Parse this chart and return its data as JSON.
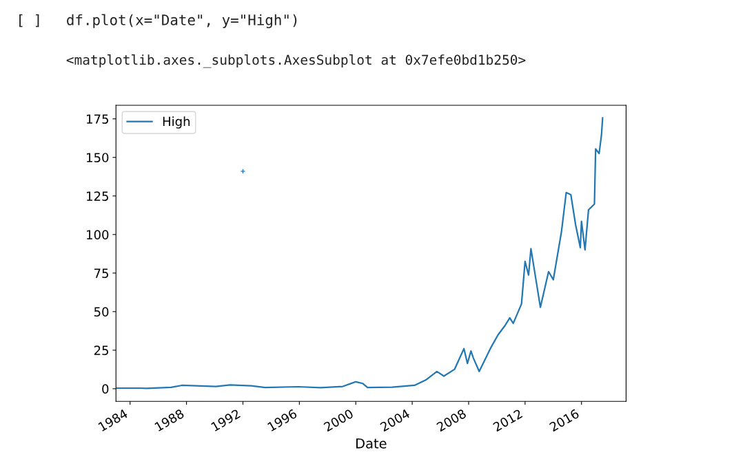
{
  "chart_data": {
    "type": "line",
    "annotations": [
      "[ ]",
      "df.plot(x=\"Date\", y=\"High\")",
      "<matplotlib.axes._subplots.AxesSubplot at 0x7efe0bd1b250>"
    ],
    "xlabel": "Date",
    "series": [
      {
        "name": "High",
        "color": "#1f77b4",
        "x": [
          "1983-02",
          "1984-10",
          "1985-03",
          "1986-12",
          "1987-09",
          "1990-02",
          "1991-02",
          "1992-08",
          "1993-08",
          "1995-12",
          "1997-07",
          "1999-02",
          "2000-01",
          "2000-07",
          "2000-11",
          "2002-08",
          "2004-03",
          "2005-01",
          "2005-10",
          "2006-04",
          "2007-01",
          "2007-09",
          "2007-12",
          "2008-03",
          "2008-05",
          "2008-10",
          "2009-08",
          "2010-02",
          "2010-08",
          "2010-12",
          "2011-03",
          "2011-10",
          "2012-01",
          "2012-04",
          "2012-06",
          "2013-02",
          "2013-09",
          "2014-01",
          "2014-08",
          "2014-12",
          "2015-04",
          "2015-08",
          "2015-12",
          "2016-01",
          "2016-04",
          "2016-07",
          "2016-12",
          "2017-01",
          "2017-04",
          "2017-06",
          "2017-07"
        ],
        "values": [
          0.4,
          0.4,
          0.2,
          0.9,
          2.2,
          1.5,
          2.5,
          1.9,
          0.8,
          1.3,
          0.7,
          1.5,
          4.5,
          3.4,
          0.8,
          1.0,
          2.2,
          5.9,
          11.2,
          8.2,
          12.6,
          26,
          16.4,
          24.5,
          20,
          11.2,
          26.8,
          35,
          41,
          46,
          42.4,
          55,
          82.6,
          73.7,
          90.8,
          52.8,
          75.9,
          70.7,
          101.9,
          127.2,
          125.8,
          106.4,
          91.5,
          108.6,
          90,
          116,
          119.8,
          155.5,
          152.5,
          164.4,
          175.6
        ]
      },
      {
        "type": "scatter",
        "marker": "cross",
        "color": "#1f77b4",
        "x": [
          "1992-01"
        ],
        "values": [
          141
        ]
      }
    ],
    "xlim": [
      "1983-01",
      "2019-03"
    ],
    "xticks": [
      {
        "value": "1984",
        "label": "1984"
      },
      {
        "value": "1988",
        "label": "1988"
      },
      {
        "value": "1992",
        "label": "1992"
      },
      {
        "value": "1996",
        "label": "1996"
      },
      {
        "value": "2000",
        "label": "2000"
      },
      {
        "value": "2004",
        "label": "2004"
      },
      {
        "value": "2008",
        "label": "2008"
      },
      {
        "value": "2012",
        "label": "2012"
      },
      {
        "value": "2016",
        "label": "2016"
      }
    ],
    "ylim": [
      -8.2,
      183.8
    ],
    "yticks": [
      0,
      25,
      50,
      75,
      100,
      125,
      150,
      175
    ],
    "legend": "top left",
    "grid": false
  }
}
